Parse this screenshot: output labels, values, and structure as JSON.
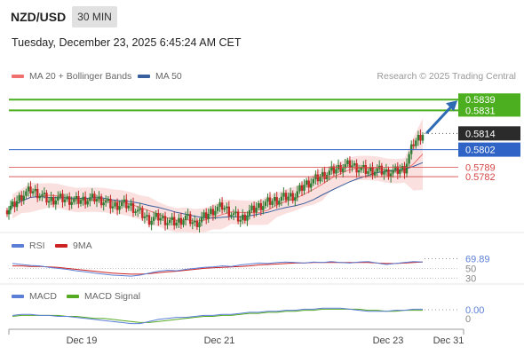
{
  "header": {
    "symbol": "NZD/USD",
    "timeframe": "30 MIN",
    "timestamp": "Tuesday, December 23, 2025 6:45:24 AM CET"
  },
  "legend": {
    "ma20_label": "MA 20 + Bollinger Bands",
    "ma50_label": "MA 50",
    "source": "Research © 2025 Trading Central"
  },
  "colors": {
    "ma20": "#f07070",
    "bollinger_fill": "#fbe0e0",
    "ma50": "#3a5f9e",
    "candle_up": "#2e7d32",
    "candle_down": "#c62828",
    "target": "#4caf1f",
    "pivot": "#2f63c6",
    "support": "#d64545",
    "arrow": "#2f6bb3",
    "rsi": "#5b7fd6",
    "rsi_ma": "#cc2222",
    "macd": "#5b7fd6",
    "macd_signal": "#55aa22"
  },
  "chart_data": [
    {
      "type": "candlestick",
      "ylim": [
        0.5742,
        0.5849
      ],
      "x_ticks": [
        "Dec 19",
        "Dec 21",
        "Dec 23",
        "Dec 31"
      ],
      "close_series": [
        0.576,
        0.5768,
        0.5772,
        0.5769,
        0.5764,
        0.5766,
        0.5765,
        0.5764,
        0.5765,
        0.5766,
        0.5764,
        0.576,
        0.5762,
        0.576,
        0.5755,
        0.575,
        0.5752,
        0.5749,
        0.5748,
        0.5752,
        0.5747,
        0.5752,
        0.5757,
        0.576,
        0.5755,
        0.575,
        0.5756,
        0.576,
        0.5763,
        0.5765,
        0.5767,
        0.5768,
        0.5776,
        0.5779,
        0.5783,
        0.5786,
        0.5789,
        0.5791,
        0.5788,
        0.5786,
        0.5787,
        0.5785,
        0.5786,
        0.5788,
        0.5807,
        0.5814
      ],
      "levels": [
        {
          "label": "0.5839",
          "value": 0.5839,
          "role": "target"
        },
        {
          "label": "0.5831",
          "value": 0.5831,
          "role": "target"
        },
        {
          "label": "0.5814",
          "value": 0.5814,
          "role": "last"
        },
        {
          "label": "0.5802",
          "value": 0.5802,
          "role": "pivot"
        },
        {
          "label": "0.5789",
          "value": 0.5789,
          "role": "support"
        },
        {
          "label": "0.5782",
          "value": 0.5782,
          "role": "support"
        }
      ]
    },
    {
      "type": "line",
      "title": "RSI",
      "ma_label": "9MA",
      "ylim": [
        25,
        80
      ],
      "ticks": [
        "69.89",
        "50",
        "30"
      ],
      "tick_values": [
        69.89,
        50,
        30
      ],
      "series": [
        {
          "name": "RSI",
          "values": [
            60,
            58,
            56,
            55,
            52,
            50,
            48,
            45,
            43,
            40,
            38,
            36,
            35,
            34,
            36,
            40,
            44,
            46,
            45,
            48,
            50,
            52,
            53,
            55,
            54,
            57,
            59,
            61,
            60,
            62,
            63,
            62,
            61,
            63,
            62,
            64,
            62,
            61,
            63,
            64,
            61,
            58,
            60,
            62,
            64,
            63
          ]
        },
        {
          "name": "9MA",
          "values": [
            55,
            55,
            54,
            54,
            53,
            52,
            50,
            48,
            46,
            44,
            42,
            40,
            39,
            38,
            38,
            39,
            41,
            43,
            44,
            46,
            48,
            50,
            51,
            52,
            53,
            54,
            55,
            57,
            58,
            59,
            60,
            61,
            61,
            62,
            62,
            62,
            62,
            62,
            62,
            62,
            61,
            60,
            60,
            61,
            62,
            63
          ]
        }
      ]
    },
    {
      "type": "line",
      "title": "MACD",
      "signal_label": "MACD Signal",
      "ylim": [
        -0.0012,
        0.0008
      ],
      "ticks": [
        "0.00",
        "0"
      ],
      "tick_values": [
        0.0,
        0.0
      ],
      "series": [
        {
          "name": "MACD",
          "values": [
            -0.0001,
            0.0,
            0.0,
            -0.0001,
            -0.0001,
            -0.0002,
            -0.0002,
            -0.0003,
            -0.0004,
            -0.0005,
            -0.0006,
            -0.0007,
            -0.0008,
            -0.0009,
            -0.0009,
            -0.0007,
            -0.0005,
            -0.0004,
            -0.0003,
            -0.0003,
            -0.0002,
            -0.0001,
            -0.0001,
            0.0,
            0.0,
            0.0001,
            0.0002,
            0.0002,
            0.0003,
            0.0003,
            0.0004,
            0.0004,
            0.0005,
            0.0005,
            0.0006,
            0.0006,
            0.0006,
            0.0005,
            0.0004,
            0.0003,
            0.0003,
            0.0003,
            0.0004,
            0.0004,
            0.0005,
            0.0005
          ]
        },
        {
          "name": "MACD Signal",
          "values": [
            -0.0002,
            -0.0001,
            -0.0001,
            -0.0001,
            -0.0001,
            -0.0001,
            -0.0002,
            -0.0002,
            -0.0003,
            -0.0004,
            -0.0004,
            -0.0005,
            -0.0006,
            -0.0007,
            -0.0008,
            -0.0008,
            -0.0007,
            -0.0006,
            -0.0005,
            -0.0004,
            -0.0003,
            -0.0002,
            -0.0002,
            -0.0001,
            -0.0001,
            0.0,
            0.0001,
            0.0001,
            0.0002,
            0.0002,
            0.0003,
            0.0003,
            0.0004,
            0.0004,
            0.0005,
            0.0005,
            0.0005,
            0.0005,
            0.0005,
            0.0004,
            0.0004,
            0.0003,
            0.0003,
            0.0004,
            0.0004,
            0.0004
          ]
        }
      ]
    }
  ]
}
